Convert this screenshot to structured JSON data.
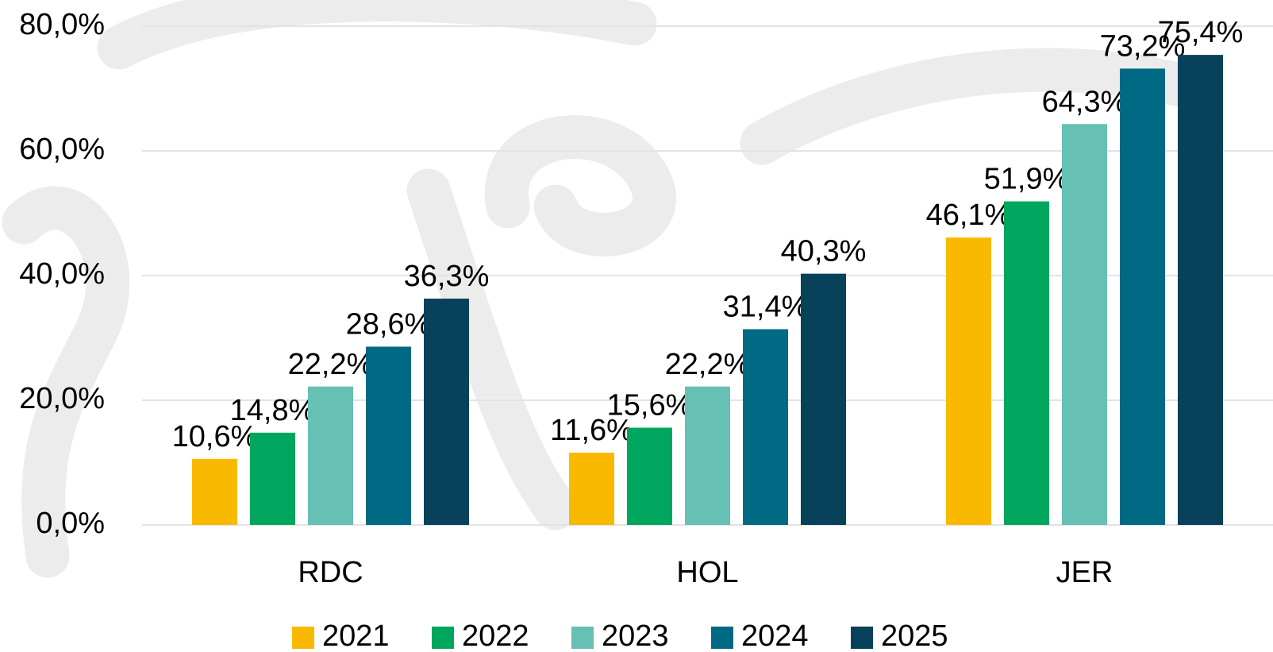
{
  "chart_data": {
    "type": "bar",
    "categories": [
      "RDC",
      "HOL",
      "JER"
    ],
    "series": [
      {
        "name": "2021",
        "color": "#f9b900",
        "values": [
          10.6,
          11.6,
          46.1
        ],
        "value_labels": [
          "10,6%",
          "11,6%",
          "46,1%"
        ]
      },
      {
        "name": "2022",
        "color": "#00a65d",
        "values": [
          14.8,
          15.6,
          51.9
        ],
        "value_labels": [
          "14,8%",
          "15,6%",
          "51,9%"
        ]
      },
      {
        "name": "2023",
        "color": "#66c0b4",
        "values": [
          22.2,
          22.2,
          64.3
        ],
        "value_labels": [
          "22,2%",
          "22,2%",
          "64,3%"
        ]
      },
      {
        "name": "2024",
        "color": "#006a84",
        "values": [
          28.6,
          31.4,
          73.2
        ],
        "value_labels": [
          "28,6%",
          "31,4%",
          "73,2%"
        ]
      },
      {
        "name": "2025",
        "color": "#08415a",
        "values": [
          36.3,
          40.3,
          75.4
        ],
        "value_labels": [
          "36,3%",
          "40,3%",
          "75,4%"
        ]
      }
    ],
    "ylim": [
      0,
      80
    ],
    "yticks": [
      {
        "value": 0,
        "label": "0,0%"
      },
      {
        "value": 20,
        "label": "20,0%"
      },
      {
        "value": 40,
        "label": "40,0%"
      },
      {
        "value": 60,
        "label": "60,0%"
      },
      {
        "value": 80,
        "label": "80,0%"
      }
    ],
    "grid": true,
    "legend": "bottom"
  }
}
